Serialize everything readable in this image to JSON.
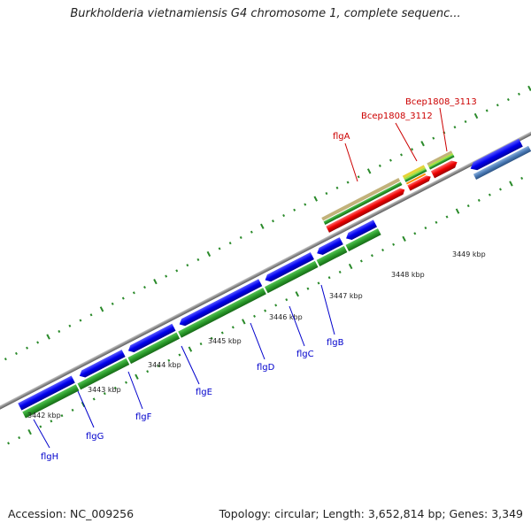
{
  "title": "Burkholderia vietnamiensis G4 chromosome 1, complete sequenc...",
  "footer": {
    "accession": "Accession: NC_009256",
    "summary": "Topology: circular; Length: 3,652,814 bp; Genes: 3,349"
  },
  "colors": {
    "forward_gene": "#0000ee",
    "reverse_gene": "#ee0000",
    "forward_label": "#0000cc",
    "reverse_label": "#cc0000",
    "green_strand": "#2a9a2a",
    "backbone": "#8c8c8c"
  },
  "kbp_ticks": [
    "3442 kbp",
    "3443 kbp",
    "3444 kbp",
    "3445 kbp",
    "3446 kbp",
    "3447 kbp",
    "3448 kbp",
    "3449 kbp"
  ],
  "reverse_genes": [
    "flgA",
    "Bcep1808_3112",
    "Bcep1808_3113"
  ],
  "forward_genes": [
    "flgB",
    "flgC",
    "flgD",
    "flgE",
    "flgF",
    "flgG",
    "flgH"
  ]
}
